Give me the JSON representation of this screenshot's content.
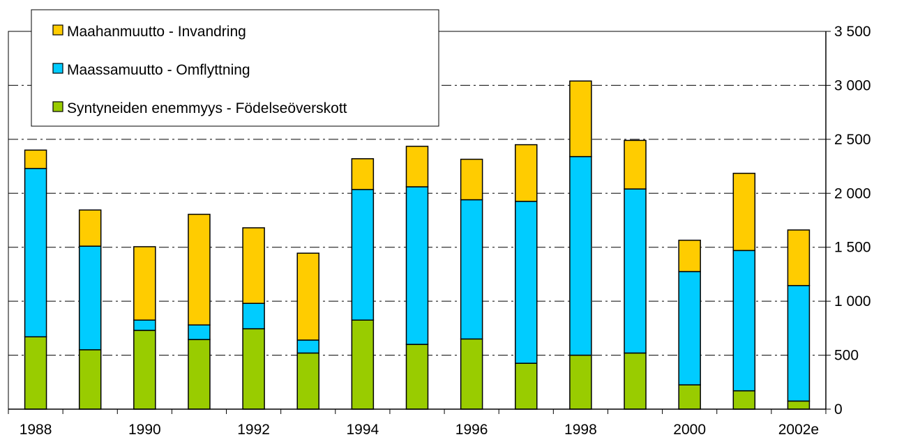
{
  "chart_data": {
    "type": "bar",
    "stacked": true,
    "categories": [
      "1988",
      "1989",
      "1990",
      "1991",
      "1992",
      "1993",
      "1994",
      "1995",
      "1996",
      "1997",
      "1998",
      "1999",
      "2000",
      "2001",
      "2002e"
    ],
    "x_tick_labels": [
      "1988",
      "1990",
      "1992",
      "1994",
      "1996",
      "1998",
      "2000",
      "2002e"
    ],
    "series": [
      {
        "name": "Syntyneiden enemmyys - Födelseöverskott",
        "color": "#99CC00",
        "values": [
          670,
          550,
          730,
          645,
          745,
          520,
          825,
          600,
          650,
          425,
          500,
          520,
          225,
          170,
          75
        ]
      },
      {
        "name": "Maassamuutto - Omflyttning",
        "color": "#00CCFF",
        "values": [
          1560,
          960,
          95,
          135,
          235,
          120,
          1210,
          1460,
          1290,
          1500,
          1840,
          1520,
          1050,
          1300,
          1070
        ]
      },
      {
        "name": "Maahanmuutto - Invandring",
        "color": "#FFCC00",
        "values": [
          170,
          335,
          680,
          1025,
          700,
          805,
          285,
          375,
          375,
          525,
          700,
          450,
          290,
          715,
          515
        ]
      }
    ],
    "legend_order": [
      "Maahanmuutto - Invandring",
      "Maassamuutto - Omflyttning",
      "Syntyneiden enemmyys - Födelseöverskott"
    ],
    "y_ticks": [
      0,
      500,
      1000,
      1500,
      2000,
      2500,
      3000,
      3500
    ],
    "y_tick_labels": [
      "0",
      "500",
      "1 000",
      "1 500",
      "2 000",
      "2 500",
      "3 000",
      "3 500"
    ],
    "ylim": [
      0,
      3500
    ],
    "y_axis_side": "right",
    "grid": "dash-dot horizontal",
    "legend_position": "top-left",
    "title": "",
    "xlabel": "",
    "ylabel": ""
  }
}
